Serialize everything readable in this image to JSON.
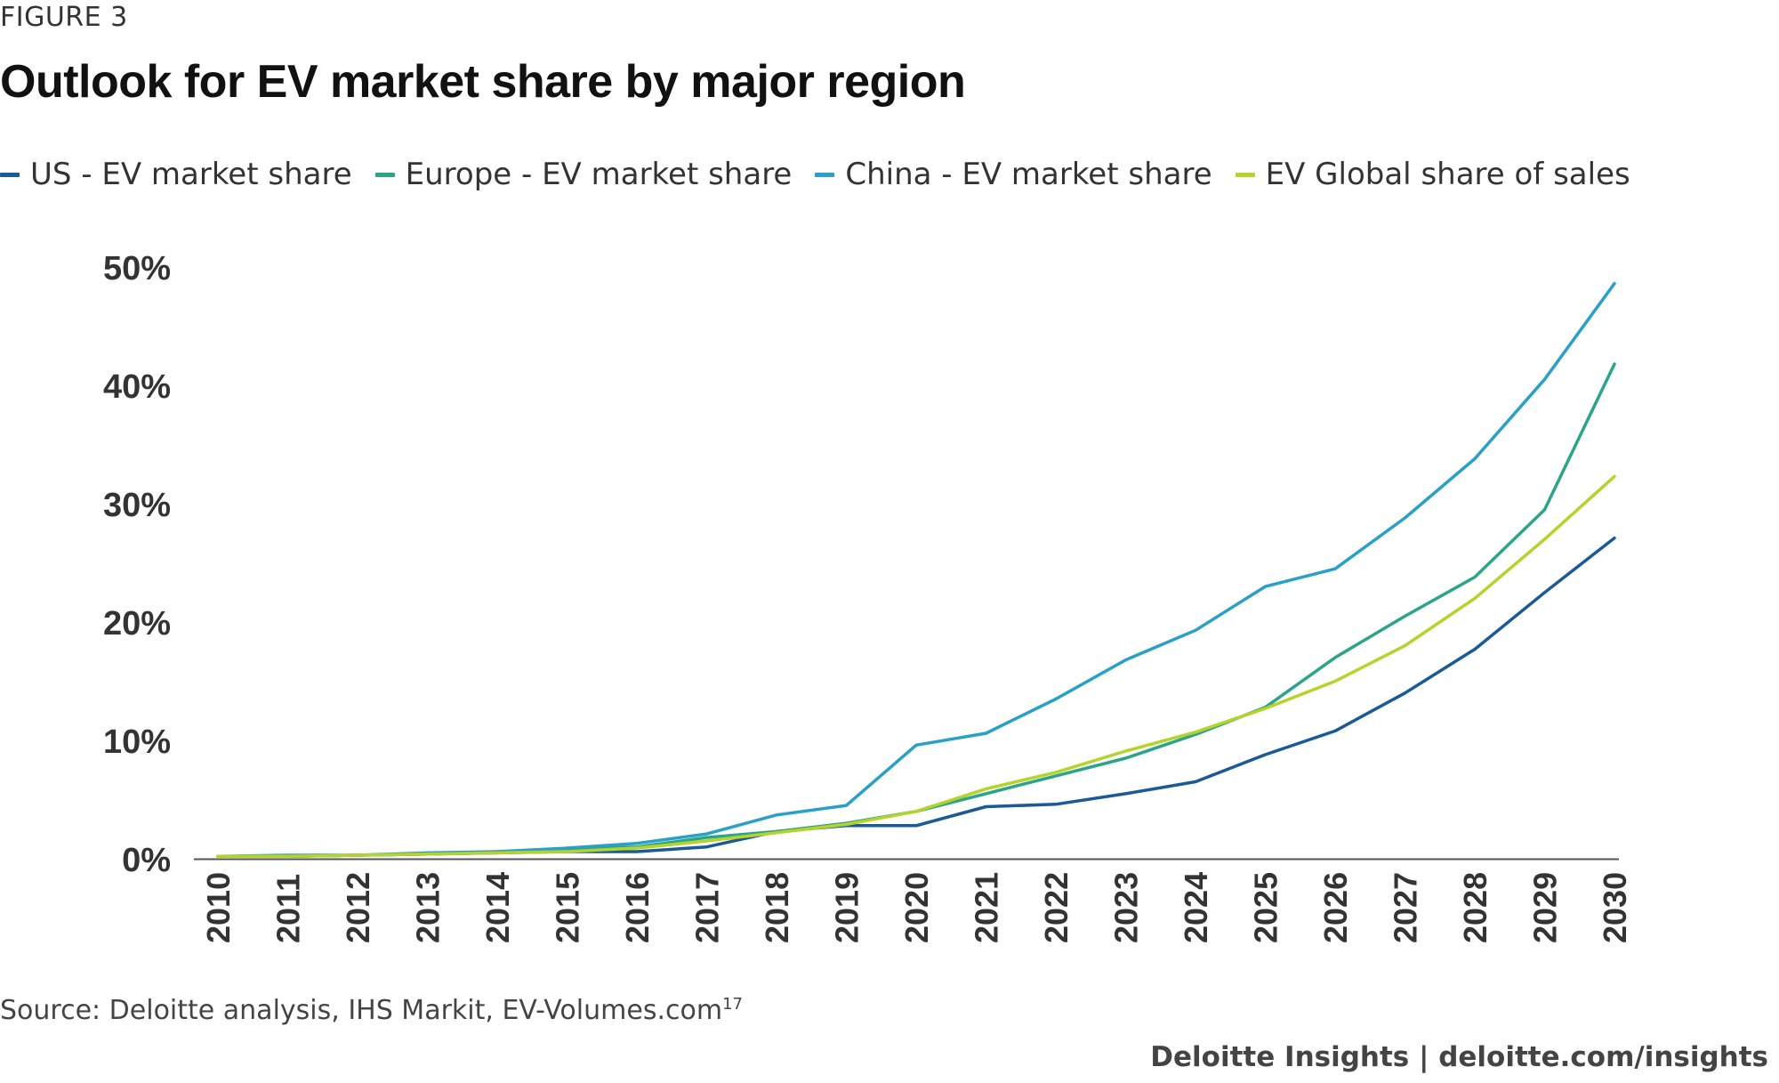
{
  "figure_label": "FIGURE 3",
  "source_text": "Source: Deloitte analysis, IHS Markit, EV-Volumes.com",
  "source_ref": "17",
  "footer": {
    "brand": "Deloitte Insights",
    "separator": "|",
    "link": "deloitte.com/insights"
  },
  "chart_data": {
    "type": "line",
    "title": "Outlook for EV market share by major region",
    "xlabel": "",
    "ylabel": "",
    "ylim": [
      0,
      50
    ],
    "legend_position": "top",
    "grid": false,
    "x": [
      "2010",
      "2011",
      "2012",
      "2013",
      "2014",
      "2015",
      "2016",
      "2017",
      "2018",
      "2019",
      "2020",
      "2021",
      "2022",
      "2023",
      "2024",
      "2025",
      "2026",
      "2027",
      "2028",
      "2029",
      "2030"
    ],
    "y_ticks": [
      "0%",
      "10%",
      "20%",
      "30%",
      "40%",
      "50%"
    ],
    "y_tick_values": [
      0,
      10,
      20,
      30,
      40,
      50
    ],
    "series": [
      {
        "name": "US - EV market share",
        "color": "#1a5a96",
        "values": [
          0.2,
          0.2,
          0.3,
          0.4,
          0.5,
          0.6,
          0.6,
          1.0,
          2.3,
          2.8,
          2.8,
          4.4,
          4.6,
          5.5,
          6.5,
          8.8,
          10.8,
          14.0,
          17.7,
          22.5,
          27.1
        ]
      },
      {
        "name": "Europe - EV market share",
        "color": "#2aa58a",
        "values": [
          0.2,
          0.2,
          0.3,
          0.4,
          0.6,
          0.8,
          1.0,
          1.8,
          2.3,
          3.0,
          4.0,
          5.5,
          7.0,
          8.5,
          10.5,
          12.8,
          17.0,
          20.5,
          23.8,
          29.5,
          41.8
        ]
      },
      {
        "name": "China - EV market share",
        "color": "#28a0c8",
        "values": [
          0.2,
          0.3,
          0.3,
          0.5,
          0.6,
          0.9,
          1.3,
          2.1,
          3.7,
          4.5,
          9.6,
          10.6,
          13.5,
          16.8,
          19.3,
          23.0,
          24.5,
          28.8,
          33.8,
          40.5,
          48.6
        ]
      },
      {
        "name": "EV Global share of sales",
        "color": "#b6d32a",
        "values": [
          0.2,
          0.2,
          0.3,
          0.4,
          0.5,
          0.6,
          0.9,
          1.5,
          2.2,
          2.9,
          4.0,
          5.9,
          7.3,
          9.1,
          10.7,
          12.7,
          15.0,
          18.0,
          22.0,
          27.0,
          32.3
        ]
      }
    ]
  }
}
